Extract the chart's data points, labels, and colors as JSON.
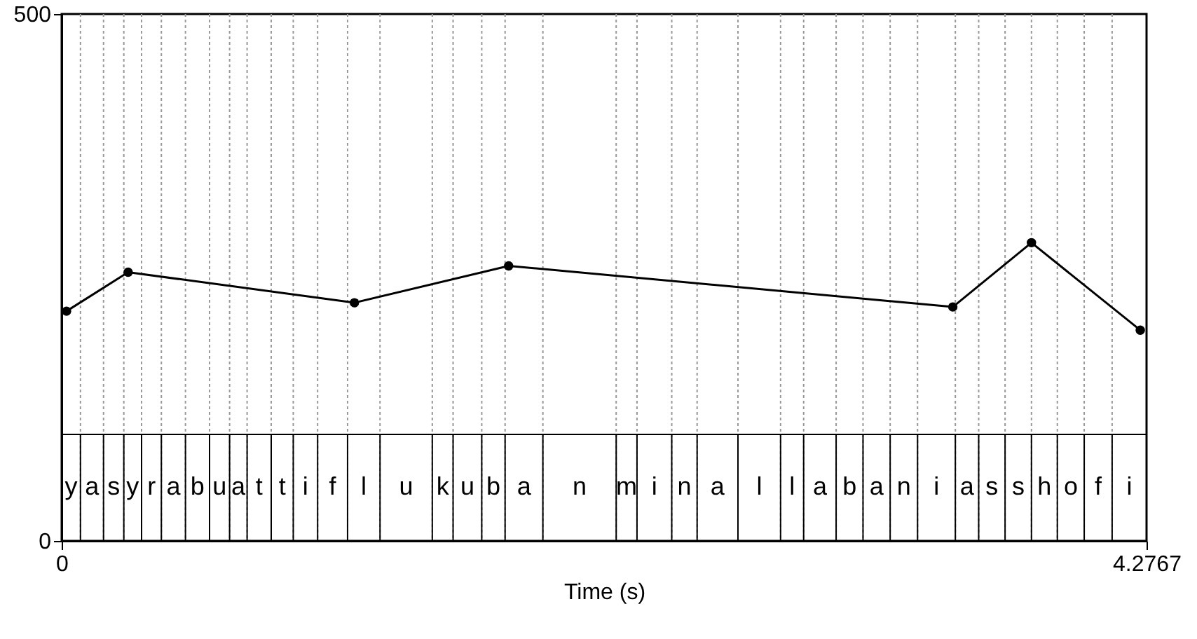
{
  "chart_data": {
    "type": "line",
    "xlabel": "Time (s)",
    "x": [
      0.019,
      0.262,
      1.154,
      1.762,
      3.513,
      3.823,
      4.252
    ],
    "series": [
      {
        "color": "#000000",
        "values": [
          218,
          255,
          226,
          261,
          222,
          283,
          200
        ]
      }
    ],
    "xlim": [
      0,
      4.2767
    ],
    "xticks": [
      0,
      4.2767
    ],
    "ylim": [
      0,
      500
    ],
    "yticks": [
      0,
      500
    ],
    "grid": false,
    "marker": "circle",
    "line_style": "solid",
    "ref_lines": [
      {
        "axis": "y",
        "value": 101,
        "color": "#000000",
        "line_style": "solid"
      },
      {
        "axis": "x",
        "value": 0.074,
        "color": "#999999",
        "line_style": "dotted"
      },
      {
        "axis": "x",
        "value": 0.165,
        "color": "#999999",
        "line_style": "dotted"
      },
      {
        "axis": "x",
        "value": 0.245,
        "color": "#999999",
        "line_style": "dotted"
      },
      {
        "axis": "x",
        "value": 0.315,
        "color": "#999999",
        "line_style": "dotted"
      },
      {
        "axis": "x",
        "value": 0.393,
        "color": "#999999",
        "line_style": "dotted"
      },
      {
        "axis": "x",
        "value": 0.488,
        "color": "#999999",
        "line_style": "dotted"
      },
      {
        "axis": "x",
        "value": 0.583,
        "color": "#999999",
        "line_style": "dotted"
      },
      {
        "axis": "x",
        "value": 0.662,
        "color": "#999999",
        "line_style": "dotted"
      },
      {
        "axis": "x",
        "value": 0.731,
        "color": "#999999",
        "line_style": "dotted"
      },
      {
        "axis": "x",
        "value": 0.826,
        "color": "#999999",
        "line_style": "dotted"
      },
      {
        "axis": "x",
        "value": 0.913,
        "color": "#999999",
        "line_style": "dotted"
      },
      {
        "axis": "x",
        "value": 1.009,
        "color": "#999999",
        "line_style": "dotted"
      },
      {
        "axis": "x",
        "value": 1.127,
        "color": "#999999",
        "line_style": "dotted"
      },
      {
        "axis": "x",
        "value": 1.255,
        "color": "#999999",
        "line_style": "dotted"
      },
      {
        "axis": "x",
        "value": 1.461,
        "color": "#999999",
        "line_style": "dotted"
      },
      {
        "axis": "x",
        "value": 1.543,
        "color": "#999999",
        "line_style": "dotted"
      },
      {
        "axis": "x",
        "value": 1.656,
        "color": "#999999",
        "line_style": "dotted"
      },
      {
        "axis": "x",
        "value": 1.748,
        "color": "#999999",
        "line_style": "dotted"
      },
      {
        "axis": "x",
        "value": 1.897,
        "color": "#999999",
        "line_style": "dotted"
      },
      {
        "axis": "x",
        "value": 2.186,
        "color": "#999999",
        "line_style": "dotted"
      },
      {
        "axis": "x",
        "value": 2.268,
        "color": "#999999",
        "line_style": "dotted"
      },
      {
        "axis": "x",
        "value": 2.405,
        "color": "#999999",
        "line_style": "dotted"
      },
      {
        "axis": "x",
        "value": 2.505,
        "color": "#999999",
        "line_style": "dotted"
      },
      {
        "axis": "x",
        "value": 2.666,
        "color": "#999999",
        "line_style": "dotted"
      },
      {
        "axis": "x",
        "value": 2.834,
        "color": "#999999",
        "line_style": "dotted"
      },
      {
        "axis": "x",
        "value": 2.925,
        "color": "#999999",
        "line_style": "dotted"
      },
      {
        "axis": "x",
        "value": 3.053,
        "color": "#999999",
        "line_style": "dotted"
      },
      {
        "axis": "x",
        "value": 3.159,
        "color": "#999999",
        "line_style": "dotted"
      },
      {
        "axis": "x",
        "value": 3.266,
        "color": "#999999",
        "line_style": "dotted"
      },
      {
        "axis": "x",
        "value": 3.374,
        "color": "#999999",
        "line_style": "dotted"
      },
      {
        "axis": "x",
        "value": 3.523,
        "color": "#999999",
        "line_style": "dotted"
      },
      {
        "axis": "x",
        "value": 3.615,
        "color": "#999999",
        "line_style": "dotted"
      },
      {
        "axis": "x",
        "value": 3.719,
        "color": "#999999",
        "line_style": "dotted"
      },
      {
        "axis": "x",
        "value": 3.823,
        "color": "#999999",
        "line_style": "dotted"
      },
      {
        "axis": "x",
        "value": 3.925,
        "color": "#999999",
        "line_style": "dotted"
      },
      {
        "axis": "x",
        "value": 4.031,
        "color": "#999999",
        "line_style": "dotted"
      },
      {
        "axis": "x",
        "value": 4.141,
        "color": "#999999",
        "line_style": "dotted"
      }
    ],
    "annotations": [
      "y",
      "a",
      "s",
      "y",
      "r",
      "a",
      "b",
      "u",
      "a",
      "t",
      "t",
      "i",
      "f",
      "l",
      "u",
      "k",
      "u",
      "b",
      "a",
      "n",
      "m",
      "i",
      "n",
      "a",
      "l",
      "l",
      "a",
      "b",
      "a",
      "n",
      "i",
      "a",
      "s",
      "s",
      "h",
      "o",
      "f",
      "i"
    ]
  }
}
